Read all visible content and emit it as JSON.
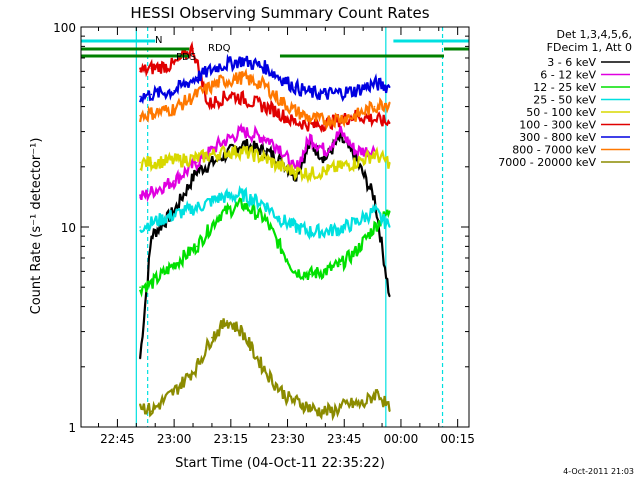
{
  "chart_data": {
    "type": "line",
    "title": "HESSI Observing Summary Count Rates",
    "xlabel": "Start Time (04-Oct-11 22:35:22)",
    "ylabel": "Count Rate (s⁻¹ detector⁻¹)",
    "y_scale": "log",
    "ylim": [
      1,
      100
    ],
    "xlim": [
      "22:35:22",
      "00:18:00"
    ],
    "x_tick_labels": [
      "22:45",
      "23:00",
      "23:15",
      "23:30",
      "23:45",
      "00:00",
      "00:15"
    ],
    "y_tick_labels": [
      "1",
      "10",
      "100"
    ],
    "legend_header": [
      "Det 1,3,4,5,6,",
      "FDecim 1, Att 0"
    ],
    "legend_position": "right",
    "footer_date": "4-Oct-2011 21:03",
    "flags": [
      {
        "label": "N",
        "color": "#00e0e0"
      },
      {
        "label": "RDQ",
        "color": "#008000"
      },
      {
        "label": "PDS",
        "color": "#008000"
      }
    ],
    "vertical_markers": [
      {
        "time": "22:50",
        "style": "solid",
        "color": "#00e0e0"
      },
      {
        "time": "22:53",
        "style": "dashed",
        "color": "#00e0e0"
      },
      {
        "time": "23:56",
        "style": "solid",
        "color": "#00e0e0"
      },
      {
        "time": "00:11",
        "style": "dashed",
        "color": "#00e0e0"
      }
    ],
    "series": [
      {
        "name": "3 - 6 keV",
        "color": "#000000",
        "x": [
          "22:51",
          "22:54",
          "23:00",
          "23:06",
          "23:12",
          "23:18",
          "23:24",
          "23:28",
          "23:32",
          "23:36",
          "23:40",
          "23:44",
          "23:48",
          "23:53",
          "23:57"
        ],
        "y": [
          2.2,
          9.0,
          12.0,
          19.0,
          22.0,
          26.0,
          24.0,
          22.0,
          18.0,
          26.0,
          22.0,
          28.0,
          22.0,
          14.0,
          4.5
        ]
      },
      {
        "name": "6 - 12 keV",
        "color": "#e000e0",
        "x": [
          "22:51",
          "22:54",
          "23:00",
          "23:06",
          "23:12",
          "23:18",
          "23:24",
          "23:28",
          "23:32",
          "23:36",
          "23:40",
          "23:44",
          "23:48",
          "23:53"
        ],
        "y": [
          14.0,
          15.0,
          17.0,
          21.0,
          26.0,
          30.0,
          28.0,
          25.0,
          19.0,
          28.0,
          24.0,
          30.0,
          24.0,
          24.0
        ]
      },
      {
        "name": "12 - 25 keV",
        "color": "#00e000",
        "x": [
          "22:51",
          "22:54",
          "23:00",
          "23:06",
          "23:12",
          "23:18",
          "23:24",
          "23:28",
          "23:32",
          "23:36",
          "23:40",
          "23:44",
          "23:48",
          "23:53",
          "23:57"
        ],
        "y": [
          5.0,
          5.2,
          6.5,
          8.0,
          11.5,
          13.0,
          11.0,
          8.0,
          6.0,
          5.8,
          6.0,
          6.5,
          7.5,
          10.0,
          12.0
        ]
      },
      {
        "name": "25 - 50 keV",
        "color": "#00e0e0",
        "x": [
          "22:51",
          "22:54",
          "23:00",
          "23:06",
          "23:12",
          "23:18",
          "23:24",
          "23:28",
          "23:32",
          "23:36",
          "23:40",
          "23:44",
          "23:48",
          "23:53",
          "23:57"
        ],
        "y": [
          10.0,
          10.5,
          11.5,
          12.5,
          14.0,
          14.5,
          13.0,
          11.0,
          10.0,
          9.5,
          9.5,
          9.8,
          10.5,
          12.0,
          10.0
        ]
      },
      {
        "name": "50 - 100 keV",
        "color": "#d8d800",
        "x": [
          "22:51",
          "22:54",
          "23:00",
          "23:06",
          "23:12",
          "23:18",
          "23:24",
          "23:28",
          "23:32",
          "23:36",
          "23:40",
          "23:44",
          "23:48",
          "23:53",
          "23:57"
        ],
        "y": [
          21.0,
          21.0,
          21.5,
          22.0,
          23.5,
          24.0,
          22.0,
          20.0,
          19.0,
          18.5,
          19.0,
          20.0,
          21.0,
          23.0,
          21.0
        ]
      },
      {
        "name": "100 - 300 keV",
        "color": "#e00000",
        "x": [
          "22:51",
          "22:54",
          "23:00",
          "23:05",
          "23:09",
          "23:15",
          "23:21",
          "23:27",
          "23:31",
          "23:37",
          "23:43",
          "23:48",
          "23:52",
          "23:57"
        ],
        "y": [
          60.0,
          62.0,
          65.0,
          78.0,
          41.0,
          46.0,
          42.0,
          38.0,
          34.0,
          32.0,
          34.0,
          36.0,
          35.0,
          33.0
        ]
      },
      {
        "name": "300 - 800 keV",
        "color": "#0000e0",
        "x": [
          "22:51",
          "22:54",
          "23:00",
          "23:06",
          "23:12",
          "23:18",
          "23:24",
          "23:28",
          "23:32",
          "23:36",
          "23:40",
          "23:44",
          "23:48",
          "23:53",
          "23:57"
        ],
        "y": [
          45.0,
          46.0,
          48.0,
          56.0,
          64.0,
          68.0,
          63.0,
          56.0,
          50.0,
          47.0,
          46.0,
          47.0,
          48.0,
          52.0,
          50.0
        ]
      },
      {
        "name": "800 - 7000 keV",
        "color": "#ff7800",
        "x": [
          "22:51",
          "22:54",
          "23:00",
          "23:06",
          "23:12",
          "23:18",
          "23:24",
          "23:28",
          "23:32",
          "23:36",
          "23:40",
          "23:44",
          "23:48",
          "23:53",
          "23:57"
        ],
        "y": [
          36.0,
          37.0,
          39.0,
          46.0,
          53.0,
          56.0,
          51.0,
          43.0,
          38.0,
          35.0,
          34.0,
          35.0,
          36.0,
          40.0,
          42.0
        ]
      },
      {
        "name": "7000 - 20000 keV",
        "color": "#8b8b00",
        "x": [
          "22:51",
          "22:54",
          "23:00",
          "23:06",
          "23:10",
          "23:14",
          "23:18",
          "23:22",
          "23:26",
          "23:30",
          "23:34",
          "23:38",
          "23:42",
          "23:46",
          "23:50",
          "23:54",
          "23:57"
        ],
        "y": [
          1.3,
          1.2,
          1.5,
          2.0,
          2.8,
          3.4,
          3.0,
          2.2,
          1.7,
          1.4,
          1.3,
          1.2,
          1.2,
          1.3,
          1.3,
          1.5,
          1.2
        ]
      }
    ]
  }
}
